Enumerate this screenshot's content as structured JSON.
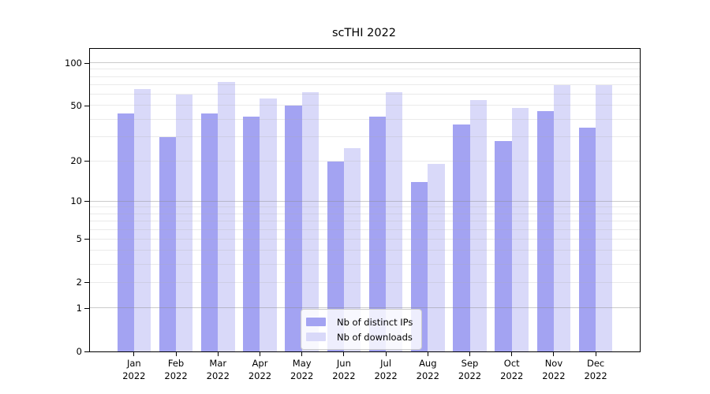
{
  "chart_data": {
    "type": "bar",
    "title": "scTHI 2022",
    "categories": [
      "Jan",
      "Feb",
      "Mar",
      "Apr",
      "May",
      "Jun",
      "Jul",
      "Aug",
      "Sep",
      "Oct",
      "Nov",
      "Dec"
    ],
    "category_year": "2022",
    "series": [
      {
        "name": "Nb of distinct IPs",
        "color": "#a3a3f2",
        "values": [
          44,
          30,
          44,
          42,
          50,
          20,
          42,
          14,
          37,
          28,
          46,
          35
        ]
      },
      {
        "name": "Nb of downloads",
        "color": "#d9d9f9",
        "values": [
          66,
          60,
          74,
          56,
          62,
          25,
          62,
          19,
          55,
          48,
          70,
          70
        ]
      }
    ],
    "y_axis": {
      "scale": "log1p",
      "tick_values": [
        100,
        50,
        20,
        10,
        5,
        2,
        1,
        0
      ],
      "major_gridlines": [
        1,
        10,
        100
      ],
      "minor_gridlines": [
        2,
        3,
        4,
        5,
        6,
        7,
        8,
        9,
        20,
        30,
        40,
        50,
        60,
        70,
        80,
        90
      ],
      "axis_top_value": 126
    },
    "xlabel": "",
    "ylabel": "",
    "grid": true,
    "legend_position": "lower-center"
  },
  "colors": {
    "background": "#ffffff",
    "spine": "#000000",
    "text": "#000000",
    "bar_distinct_ips": "#a3a3f2",
    "bar_downloads": "#d9d9f9"
  }
}
